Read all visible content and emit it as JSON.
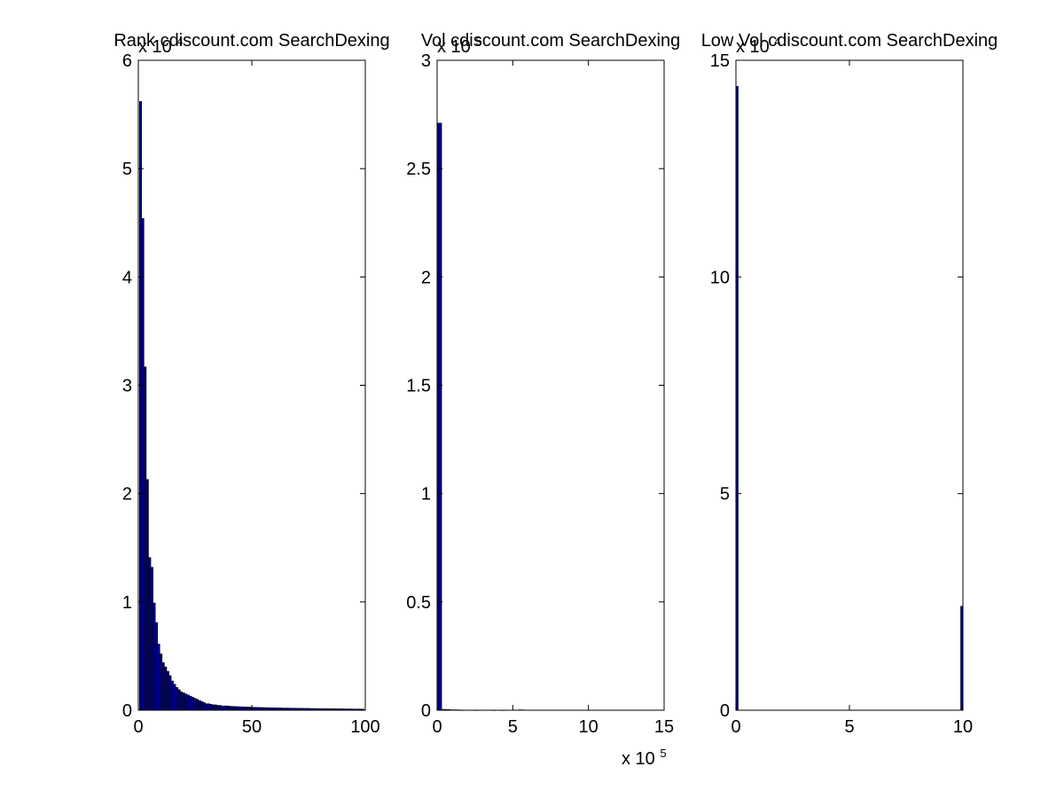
{
  "chart_data": [
    {
      "type": "bar",
      "title": "Rank cdiscount.com SearchDexing",
      "xlabel": "",
      "ylabel": "",
      "xlim": [
        0,
        100
      ],
      "ylim": [
        0,
        6
      ],
      "y_exponent_label": "x 10",
      "y_exponent_power": "4",
      "x_exponent_label": "",
      "x_exponent_power": "",
      "xticks": [
        0,
        50,
        100
      ],
      "xtick_labels": [
        "0",
        "50",
        "100"
      ],
      "yticks": [
        0,
        1,
        2,
        3,
        4,
        5,
        6
      ],
      "ytick_labels": [
        "0",
        "1",
        "2",
        "3",
        "4",
        "5",
        "6"
      ],
      "bin_width": 1,
      "x": [
        1,
        2,
        3,
        4,
        5,
        6,
        7,
        8,
        9,
        10,
        11,
        12,
        13,
        14,
        15,
        16,
        17,
        18,
        19,
        20,
        21,
        22,
        23,
        24,
        25,
        26,
        27,
        28,
        29,
        30,
        31,
        32,
        33,
        34,
        35,
        36,
        37,
        38,
        39,
        40,
        41,
        42,
        43,
        44,
        45,
        46,
        47,
        48,
        49,
        50,
        51,
        52,
        53,
        54,
        55,
        56,
        57,
        58,
        59,
        60,
        61,
        62,
        63,
        64,
        65,
        66,
        67,
        68,
        69,
        70,
        71,
        72,
        73,
        74,
        75,
        76,
        77,
        78,
        79,
        80,
        81,
        82,
        83,
        84,
        85,
        86,
        87,
        88,
        89,
        90,
        91,
        92,
        93,
        94,
        95,
        96,
        97,
        98,
        99
      ],
      "values": [
        5.62,
        4.54,
        3.17,
        2.13,
        1.41,
        1.32,
        0.99,
        0.81,
        0.61,
        0.52,
        0.44,
        0.4,
        0.36,
        0.32,
        0.27,
        0.24,
        0.21,
        0.19,
        0.17,
        0.16,
        0.15,
        0.14,
        0.13,
        0.12,
        0.11,
        0.1,
        0.09,
        0.08,
        0.07,
        0.06,
        0.06,
        0.055,
        0.05,
        0.05,
        0.045,
        0.045,
        0.04,
        0.04,
        0.04,
        0.038,
        0.036,
        0.035,
        0.034,
        0.033,
        0.032,
        0.031,
        0.03,
        0.03,
        0.029,
        0.028,
        0.027,
        0.026,
        0.026,
        0.025,
        0.025,
        0.024,
        0.024,
        0.023,
        0.023,
        0.022,
        0.022,
        0.021,
        0.021,
        0.02,
        0.02,
        0.02,
        0.019,
        0.019,
        0.019,
        0.018,
        0.018,
        0.018,
        0.017,
        0.017,
        0.017,
        0.016,
        0.016,
        0.016,
        0.015,
        0.015,
        0.015,
        0.015,
        0.014,
        0.014,
        0.014,
        0.014,
        0.013,
        0.013,
        0.013,
        0.013,
        0.012,
        0.012,
        0.012,
        0.012,
        0.011,
        0.011,
        0.011,
        0.011,
        0.01
      ]
    },
    {
      "type": "bar",
      "title": "Vol cdiscount.com SearchDexing",
      "xlabel": "",
      "ylabel": "",
      "xlim": [
        0,
        15
      ],
      "ylim": [
        0,
        3
      ],
      "y_exponent_label": "x 10",
      "y_exponent_power": "5",
      "x_exponent_label": "x 10",
      "x_exponent_power": "5",
      "xticks": [
        0,
        5,
        10,
        15
      ],
      "xtick_labels": [
        "0",
        "5",
        "10",
        "15"
      ],
      "yticks": [
        0,
        0.5,
        1,
        1.5,
        2,
        2.5,
        3
      ],
      "ytick_labels": [
        "0",
        "0.5",
        "1",
        "1.5",
        "2",
        "2.5",
        "3"
      ],
      "bin_width": 0.3,
      "x": [
        0.15,
        0.45,
        0.75,
        1.05,
        1.35,
        1.65,
        2.55,
        3.75,
        4.35,
        5.55
      ],
      "values": [
        2.71,
        0.004,
        0.003,
        0.002,
        0.002,
        0.001,
        0.001,
        0.001,
        0.001,
        0.002
      ]
    },
    {
      "type": "bar",
      "title": "Low Vol cdiscount.com SearchDexing",
      "xlabel": "",
      "ylabel": "",
      "xlim": [
        0,
        10
      ],
      "ylim": [
        0,
        15
      ],
      "y_exponent_label": "x 10",
      "y_exponent_power": "4",
      "x_exponent_label": "",
      "x_exponent_power": "",
      "xticks": [
        0,
        5,
        10
      ],
      "xtick_labels": [
        "0",
        "5",
        "10"
      ],
      "yticks": [
        0,
        5,
        10,
        15
      ],
      "ytick_labels": [
        "0",
        "5",
        "10",
        "15"
      ],
      "bin_width": 0.1,
      "x": [
        0.05,
        9.95
      ],
      "values": [
        14.4,
        2.4
      ]
    }
  ]
}
